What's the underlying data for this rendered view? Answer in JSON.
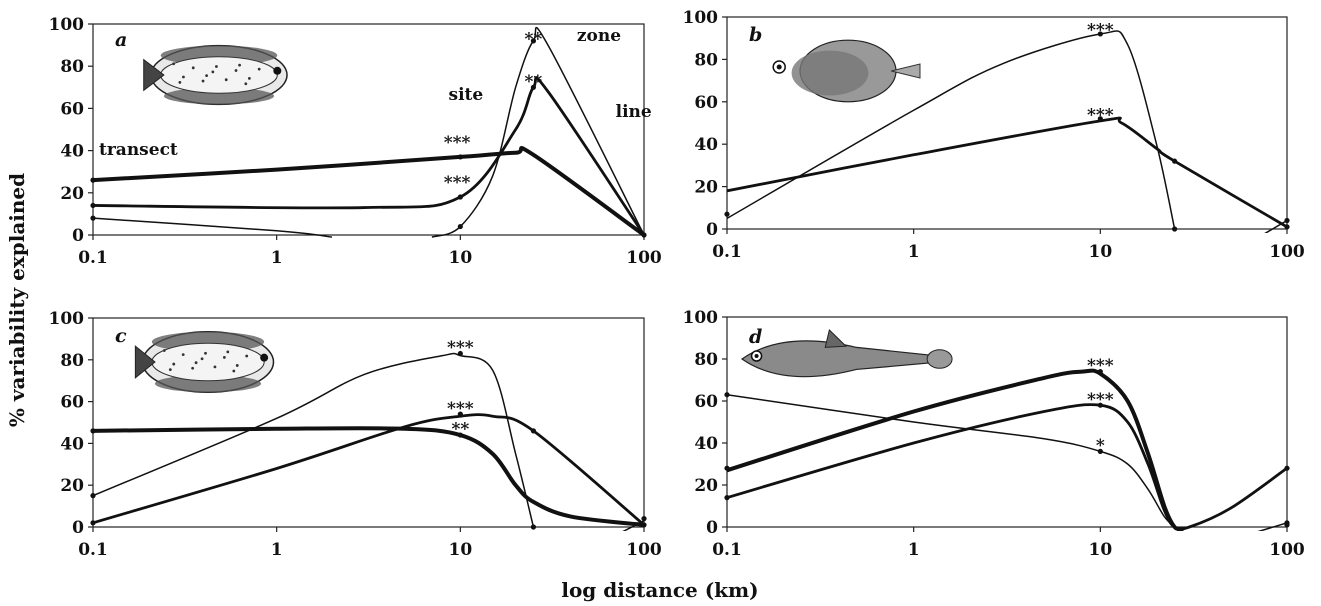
{
  "figure": {
    "xlabel": "log distance (km)",
    "ylabel": "% variability explained"
  },
  "chart_data": [
    {
      "panel": "a",
      "type": "line",
      "xscale": "log",
      "xlim": [
        0.1,
        100
      ],
      "ylim": [
        0,
        100
      ],
      "xticks": [
        "0.1",
        "1",
        "10",
        "100"
      ],
      "yticks": [
        "0",
        "20",
        "40",
        "60",
        "80",
        "100"
      ],
      "annotations": [
        {
          "text": "transect",
          "x": 0.1,
          "y": 38
        },
        {
          "text": "site",
          "x": 8,
          "y": 64
        },
        {
          "text": "zone",
          "x": 40,
          "y": 92
        },
        {
          "text": "line",
          "x": 65,
          "y": 56
        },
        {
          "text": "***",
          "x": 9.6,
          "y": 45
        },
        {
          "text": "***",
          "x": 9.6,
          "y": 26
        },
        {
          "text": "**",
          "x": 25,
          "y": 94
        },
        {
          "text": "**",
          "x": 25,
          "y": 74
        }
      ],
      "series": [
        {
          "width": 4,
          "points": [
            [
              0.1,
              26
            ],
            [
              1,
              31
            ],
            [
              10,
              37
            ],
            [
              20,
              39
            ],
            [
              25,
              38
            ],
            [
              100,
              0
            ]
          ]
        },
        {
          "width": 2.8,
          "points": [
            [
              0.1,
              14
            ],
            [
              3,
              13
            ],
            [
              10,
              18
            ],
            [
              20,
              50
            ],
            [
              25,
              70
            ],
            [
              30,
              68
            ],
            [
              100,
              0
            ]
          ]
        },
        {
          "width": 1.5,
          "points": [
            [
              0.1,
              8
            ],
            [
              1,
              2
            ],
            [
              2,
              -1
            ]
          ]
        },
        {
          "width": 1.5,
          "points": [
            [
              7,
              -1
            ],
            [
              10,
              4
            ],
            [
              15,
              28
            ],
            [
              20,
              70
            ],
            [
              25,
              92
            ],
            [
              30,
              90
            ],
            [
              100,
              0
            ]
          ]
        }
      ],
      "markers": [
        [
          0.1,
          26
        ],
        [
          0.1,
          14
        ],
        [
          0.1,
          8
        ],
        [
          10,
          37
        ],
        [
          10,
          18
        ],
        [
          10,
          4
        ],
        [
          25,
          92
        ],
        [
          25,
          70
        ],
        [
          100,
          0
        ]
      ]
    },
    {
      "panel": "b",
      "type": "line",
      "xscale": "log",
      "xlim": [
        0.1,
        100
      ],
      "ylim": [
        0,
        100
      ],
      "xticks": [
        "0.1",
        "1",
        "10",
        "100"
      ],
      "yticks": [
        "0",
        "20",
        "40",
        "60",
        "80",
        "100"
      ],
      "annotations": [
        {
          "text": "***",
          "x": 10,
          "y": 95
        },
        {
          "text": "***",
          "x": 10,
          "y": 55
        }
      ],
      "series": [
        {
          "width": 2.8,
          "points": [
            [
              0.1,
              18
            ],
            [
              1,
              35
            ],
            [
              10,
              51
            ],
            [
              13,
              50
            ],
            [
              20,
              38
            ],
            [
              25,
              32
            ],
            [
              100,
              1
            ]
          ]
        },
        {
          "width": 1.5,
          "points": [
            [
              0.1,
              5
            ],
            [
              1,
              56
            ],
            [
              3,
              78
            ],
            [
              10,
              92
            ],
            [
              14,
              87
            ],
            [
              20,
              40
            ],
            [
              25,
              0
            ]
          ]
        },
        {
          "width": 1.5,
          "points": [
            [
              70,
              -4
            ],
            [
              100,
              4
            ]
          ]
        }
      ],
      "markers": [
        [
          0.1,
          7
        ],
        [
          10,
          92
        ],
        [
          10,
          52
        ],
        [
          25,
          32
        ],
        [
          25,
          0
        ],
        [
          100,
          1
        ],
        [
          100,
          4
        ]
      ]
    },
    {
      "panel": "c",
      "type": "line",
      "xscale": "log",
      "xlim": [
        0.1,
        100
      ],
      "ylim": [
        0,
        100
      ],
      "xticks": [
        "0.1",
        "1",
        "10",
        "100"
      ],
      "yticks": [
        "0",
        "20",
        "40",
        "60",
        "80",
        "100"
      ],
      "annotations": [
        {
          "text": "***",
          "x": 10,
          "y": 87
        },
        {
          "text": "***",
          "x": 10,
          "y": 58
        },
        {
          "text": "**",
          "x": 10,
          "y": 48
        }
      ],
      "series": [
        {
          "width": 4,
          "points": [
            [
              0.1,
              46
            ],
            [
              1,
              47
            ],
            [
              5,
              47
            ],
            [
              10,
              44
            ],
            [
              15,
              35
            ],
            [
              20,
              20
            ],
            [
              25,
              12
            ],
            [
              40,
              5
            ],
            [
              100,
              1
            ]
          ]
        },
        {
          "width": 2.8,
          "points": [
            [
              0.1,
              2
            ],
            [
              1,
              28
            ],
            [
              5,
              48
            ],
            [
              10,
              53
            ],
            [
              15,
              53
            ],
            [
              25,
              46
            ],
            [
              100,
              1
            ]
          ]
        },
        {
          "width": 1.5,
          "points": [
            [
              0.1,
              15
            ],
            [
              1,
              52
            ],
            [
              3,
              73
            ],
            [
              8,
              82
            ],
            [
              10,
              82
            ],
            [
              15,
              75
            ],
            [
              20,
              35
            ],
            [
              25,
              0
            ]
          ]
        },
        {
          "width": 1.5,
          "points": [
            [
              70,
              -4
            ],
            [
              100,
              3
            ]
          ]
        }
      ],
      "markers": [
        [
          0.1,
          46
        ],
        [
          0.1,
          15
        ],
        [
          0.1,
          2
        ],
        [
          10,
          83
        ],
        [
          10,
          54
        ],
        [
          10,
          44
        ],
        [
          25,
          46
        ],
        [
          25,
          0
        ],
        [
          100,
          4
        ],
        [
          100,
          1
        ]
      ]
    },
    {
      "panel": "d",
      "type": "line",
      "xscale": "log",
      "xlim": [
        0.1,
        100
      ],
      "ylim": [
        0,
        100
      ],
      "xticks": [
        "0.1",
        "1",
        "10",
        "100"
      ],
      "yticks": [
        "0",
        "20",
        "40",
        "60",
        "80",
        "100"
      ],
      "annotations": [
        {
          "text": "***",
          "x": 10,
          "y": 78
        },
        {
          "text": "***",
          "x": 10,
          "y": 62
        },
        {
          "text": "*",
          "x": 10,
          "y": 40
        }
      ],
      "series": [
        {
          "width": 4,
          "points": [
            [
              0.1,
              27
            ],
            [
              1,
              55
            ],
            [
              5,
              71
            ],
            [
              8,
              74
            ],
            [
              10,
              73
            ],
            [
              14,
              60
            ],
            [
              18,
              35
            ],
            [
              22,
              10
            ],
            [
              25,
              0
            ],
            [
              28,
              -1
            ]
          ]
        },
        {
          "width": 2.8,
          "points": [
            [
              0.1,
              14
            ],
            [
              1,
              40
            ],
            [
              5,
              55
            ],
            [
              10,
              58
            ],
            [
              14,
              50
            ],
            [
              18,
              30
            ],
            [
              22,
              8
            ],
            [
              25,
              0
            ],
            [
              30,
              0
            ],
            [
              50,
              9
            ],
            [
              100,
              28
            ]
          ]
        },
        {
          "width": 1.5,
          "points": [
            [
              0.1,
              63
            ],
            [
              1,
              50
            ],
            [
              5,
              42
            ],
            [
              10,
              36
            ],
            [
              14,
              30
            ],
            [
              18,
              18
            ],
            [
              22,
              5
            ],
            [
              25,
              0
            ]
          ]
        },
        {
          "width": 1.5,
          "points": [
            [
              60,
              -4
            ],
            [
              100,
              2
            ]
          ]
        }
      ],
      "markers": [
        [
          0.1,
          63
        ],
        [
          0.1,
          28
        ],
        [
          0.1,
          14
        ],
        [
          10,
          74
        ],
        [
          10,
          58
        ],
        [
          10,
          36
        ],
        [
          100,
          28
        ],
        [
          100,
          2
        ],
        [
          100,
          1
        ]
      ]
    }
  ]
}
